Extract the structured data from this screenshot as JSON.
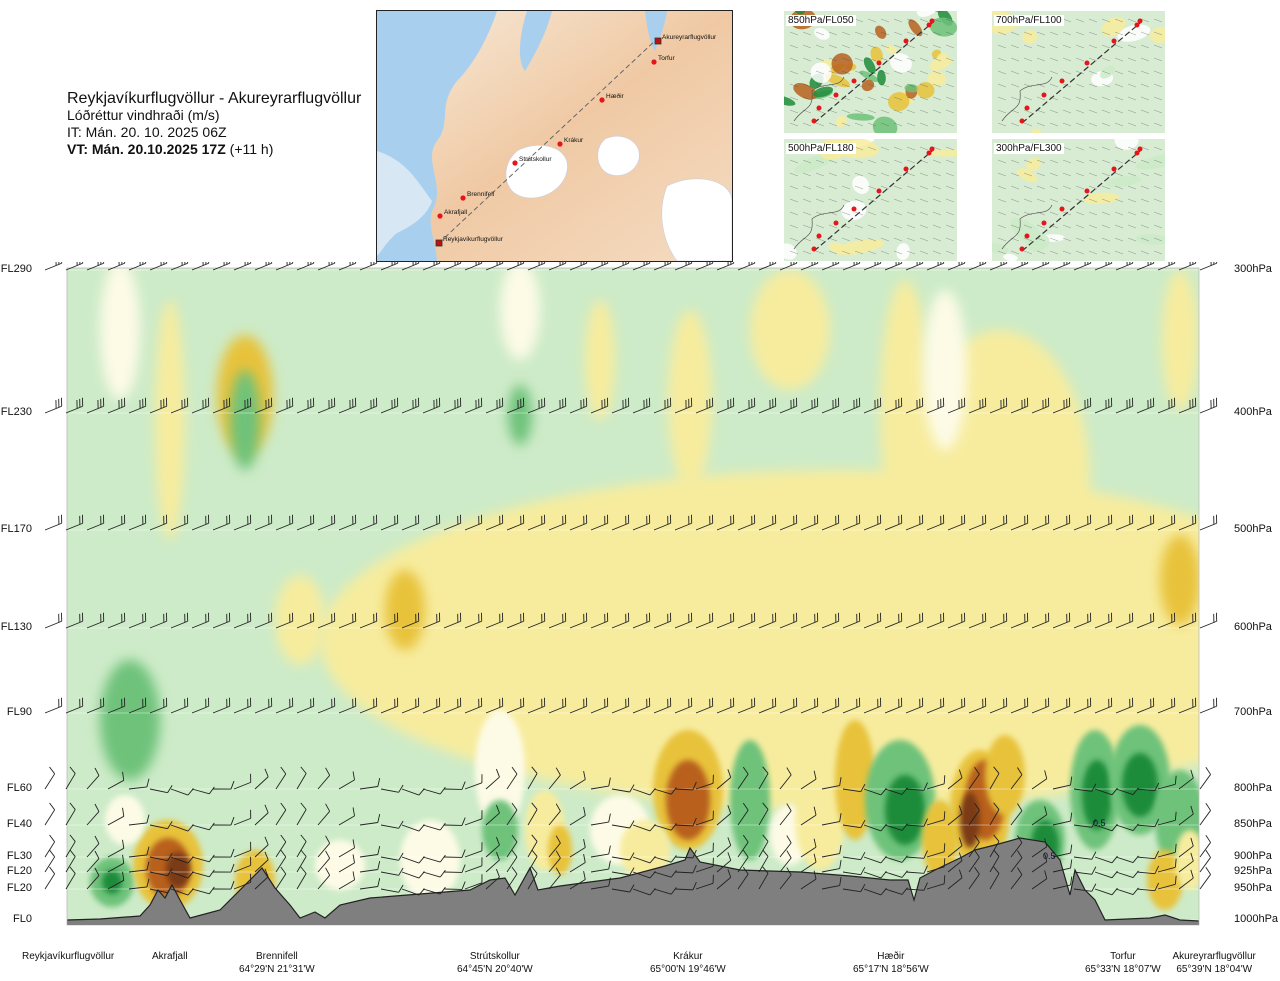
{
  "title": {
    "route": "Reykjavíkurflugvöllur - Akureyrarflugvöllur",
    "product": "Lóðréttur vindhraði (m/s)",
    "issue": "IT: Mán. 20. 10. 2025 06Z",
    "valid": "VT: Mán. 20.10.2025 17Z",
    "valid_offset": "(+11 h)"
  },
  "route_map": {
    "points": [
      {
        "name": "Akureyrarflugvöllur",
        "marker": "square"
      },
      {
        "name": "Torfur",
        "marker": "dot"
      },
      {
        "name": "Hæðir",
        "marker": "dot"
      },
      {
        "name": "Krákur",
        "marker": "dot"
      },
      {
        "name": "Strútskollur",
        "marker": "dot"
      },
      {
        "name": "Brennifell",
        "marker": "dot"
      },
      {
        "name": "Akrafjall",
        "marker": "dot"
      },
      {
        "name": "Reykjavíkurflugvöllur",
        "marker": "square"
      }
    ]
  },
  "panels": [
    {
      "label": "850hPa/FL050",
      "scheme": "strong"
    },
    {
      "label": "700hPa/FL100",
      "scheme": "weak"
    },
    {
      "label": "500hPa/FL180",
      "scheme": "weak"
    },
    {
      "label": "300hPa/FL300",
      "scheme": "weak"
    }
  ],
  "colors": {
    "strong_up": "#1e8c3a",
    "up": "#6ec27a",
    "weak_up": "#cdebc8",
    "neutral": "#fdfbe6",
    "weak_down": "#f7ec9e",
    "down": "#e8c23a",
    "strong_down": "#b8611e",
    "terrain": "#7f7f7f",
    "route": "#e3161b"
  },
  "chart_data": {
    "type": "heatmap",
    "title": "Lóðréttur vindhraði (m/s)",
    "y_levels": [
      {
        "fl": "FL290",
        "hpa": "300hPa"
      },
      {
        "fl": "FL230",
        "hpa": "400hPa"
      },
      {
        "fl": "FL170",
        "hpa": "500hPa"
      },
      {
        "fl": "FL130",
        "hpa": "600hPa"
      },
      {
        "fl": "FL90",
        "hpa": "700hPa"
      },
      {
        "fl": "FL60",
        "hpa": "800hPa"
      },
      {
        "fl": "FL40",
        "hpa": "850hPa"
      },
      {
        "fl": "FL30",
        "hpa": "900hPa"
      },
      {
        "fl": "FL20",
        "hpa": "925hPa"
      },
      {
        "fl": "FL20",
        "hpa": "950hPa"
      },
      {
        "fl": "FL0",
        "hpa": "1000hPa"
      }
    ],
    "waypoints": [
      {
        "name": "Reykjavíkurflugvöllur",
        "coord": ""
      },
      {
        "name": "Akrafjall",
        "coord": ""
      },
      {
        "name": "Brennifell",
        "coord": "64°29'N 21°31'W"
      },
      {
        "name": "Strútskollur",
        "coord": "64°45'N 20°40'W"
      },
      {
        "name": "Krákur",
        "coord": "65°00'N 19°46'W"
      },
      {
        "name": "Hæðir",
        "coord": "65°17'N 18°56'W"
      },
      {
        "name": "Torfur",
        "coord": "65°33'N 18°07'W"
      },
      {
        "name": "Akureyrarflugvöllur",
        "coord": "65°39'N 18°04'W"
      }
    ],
    "contour_labels": [
      "0.5",
      "0.5"
    ]
  }
}
